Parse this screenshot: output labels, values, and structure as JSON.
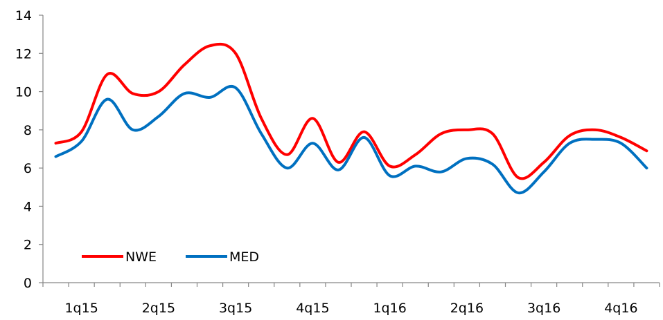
{
  "chart_data": {
    "type": "line",
    "title": "",
    "xlabel": "",
    "ylabel": "",
    "ylim": [
      0,
      14
    ],
    "yticks": [
      0,
      2,
      4,
      6,
      8,
      10,
      12,
      14
    ],
    "x_tick_labels": [
      "1q15",
      "2q15",
      "3q15",
      "4q15",
      "1q16",
      "2q16",
      "3q16",
      "4q16"
    ],
    "n_points": 24,
    "grid": false,
    "legend_position": "bottom-left",
    "series": [
      {
        "name": "NWE",
        "color": "#ff0000",
        "values": [
          7.3,
          7.9,
          10.9,
          9.9,
          10.0,
          11.4,
          12.4,
          12.0,
          8.6,
          6.7,
          8.6,
          6.3,
          7.9,
          6.1,
          6.7,
          7.8,
          8.0,
          7.8,
          5.5,
          6.3,
          7.7,
          8.0,
          7.6,
          6.9
        ]
      },
      {
        "name": "MED",
        "color": "#0070c0",
        "values": [
          6.6,
          7.4,
          9.6,
          8.0,
          8.7,
          9.9,
          9.7,
          10.2,
          7.8,
          6.0,
          7.3,
          5.9,
          7.6,
          5.6,
          6.1,
          5.8,
          6.5,
          6.2,
          4.7,
          5.8,
          7.3,
          7.5,
          7.3,
          6.0
        ]
      }
    ]
  }
}
